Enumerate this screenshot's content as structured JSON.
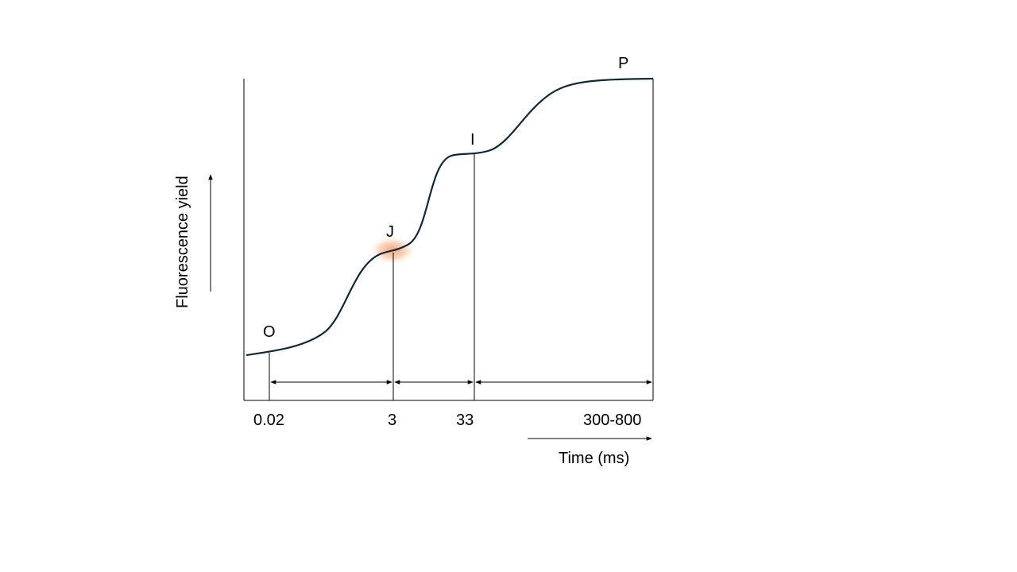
{
  "diagram": {
    "points": [
      {
        "id": "O",
        "label": "O"
      },
      {
        "id": "J",
        "label": "J"
      },
      {
        "id": "I",
        "label": "I"
      },
      {
        "id": "P",
        "label": "P"
      }
    ],
    "time_ticks": [
      "0.02",
      "3",
      "33",
      "300-800"
    ],
    "y_axis_label": "Fluorescence yield",
    "x_axis_label": "Time (ms)",
    "colors": {
      "curve": "#0d2a3c",
      "highlight": "#f4a070",
      "lines": "#000000"
    },
    "highlighted_point": "J"
  }
}
